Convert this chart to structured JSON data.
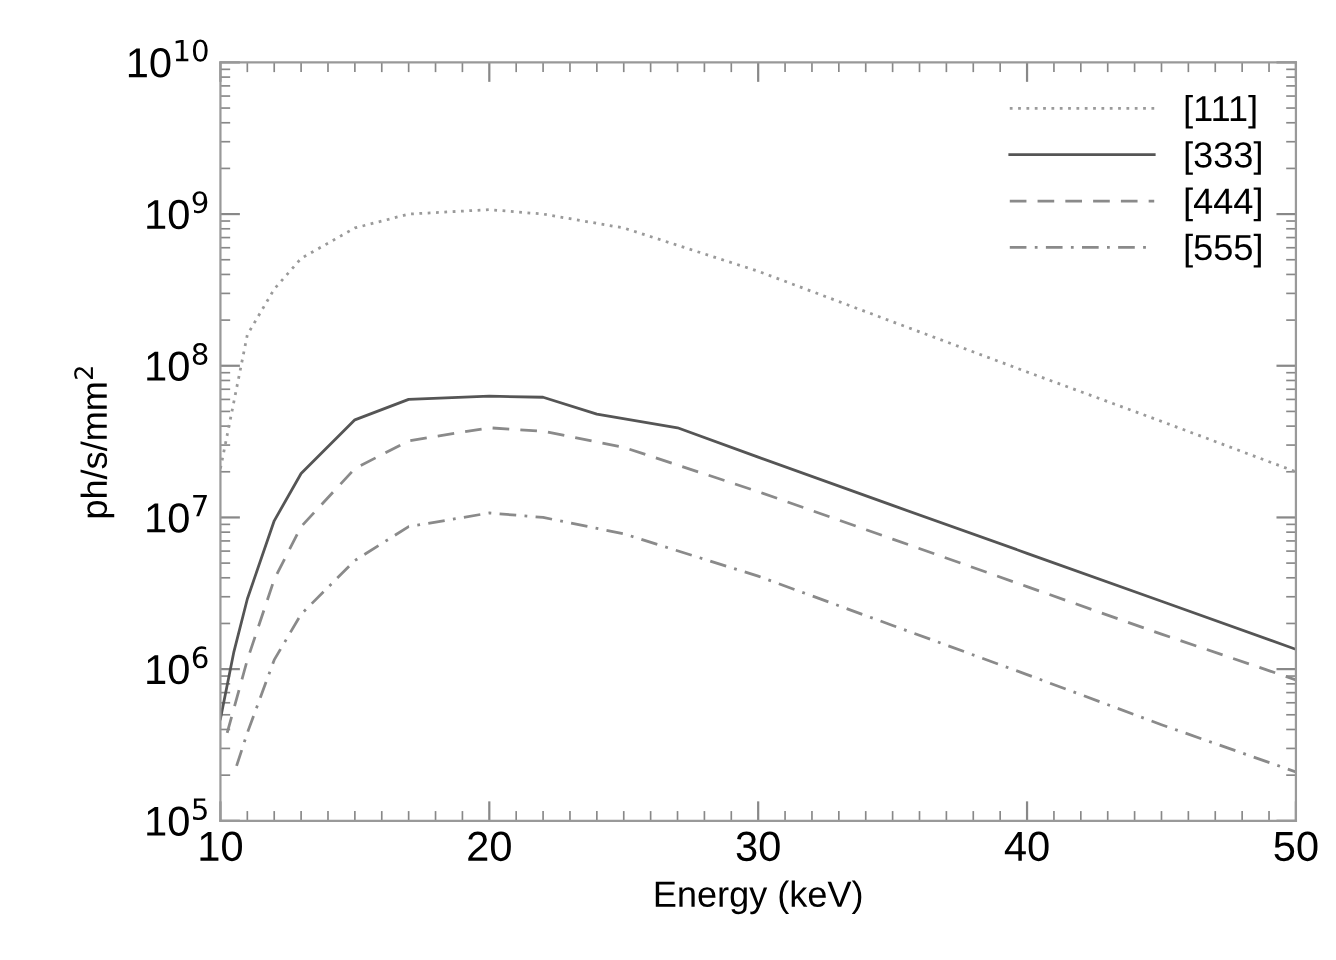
{
  "chart_data": {
    "type": "line",
    "xlabel": "Energy (keV)",
    "ylabel": "ph/s/mm$^{2}$",
    "log": "y",
    "xlim": [
      10,
      50
    ],
    "xticks": [
      10,
      20,
      30,
      40,
      50
    ],
    "ylim": [
      100000,
      10000000000
    ],
    "yticks": [
      {
        "value": 100000,
        "label": "10$^{5}$"
      },
      {
        "value": 1000000,
        "label": "10$^{6}$"
      },
      {
        "value": 10000000,
        "label": "10$^{7}$"
      },
      {
        "value": 100000000,
        "label": "10$^{8}$"
      },
      {
        "value": 1000000000,
        "label": "10$^{9}$"
      },
      {
        "value": 10000000000,
        "label": "10$^{10}$"
      }
    ],
    "grid": false,
    "legend": "top right",
    "marker": "none",
    "series": [
      {
        "name": "[111]",
        "color": "#9a9a9a",
        "line_style": "dotted",
        "x": [
          10,
          11,
          12,
          13,
          15,
          17,
          20,
          22,
          25,
          30,
          35,
          40,
          45,
          50
        ],
        "values": [
          21000000,
          160000000,
          320000000,
          510000000,
          810000000,
          1000000000,
          1070000000,
          1000000000,
          810000000,
          420000000,
          195000000,
          91000000,
          43000000,
          20000000
        ]
      },
      {
        "name": "[333]",
        "color": "#555555",
        "line_style": "solid",
        "x": [
          10,
          10.5,
          11,
          12,
          13,
          15,
          17,
          20,
          22,
          24,
          27,
          30,
          35,
          40,
          45,
          50
        ],
        "values": [
          470000,
          1300000,
          2900000,
          9500000,
          19500000,
          44000000,
          60000000,
          63000000,
          62000000,
          48000000,
          39000000,
          25000000,
          12000000,
          5800000,
          2800000,
          1350000
        ]
      },
      {
        "name": "[444]",
        "color": "#8a8a8a",
        "line_style": "dashed",
        "x": [
          10.25,
          11,
          12,
          13,
          15,
          17,
          20,
          22,
          25,
          30,
          35,
          40,
          45,
          50
        ],
        "values": [
          380000,
          1150000,
          3900000,
          8700000,
          21000000,
          32000000,
          39000000,
          37000000,
          29000000,
          14800000,
          7200000,
          3500000,
          1700000,
          850000
        ]
      },
      {
        "name": "[555]",
        "color": "#8a8a8a",
        "line_style": "dashdot",
        "x": [
          10.6,
          11,
          12,
          13,
          15,
          17,
          20,
          22,
          25,
          30,
          35,
          40,
          45,
          50
        ],
        "values": [
          230000,
          380000,
          1150000,
          2300000,
          5200000,
          8700000,
          10700000,
          10000000,
          7800000,
          4100000,
          1940000,
          920000,
          430000,
          210000
        ]
      }
    ]
  }
}
